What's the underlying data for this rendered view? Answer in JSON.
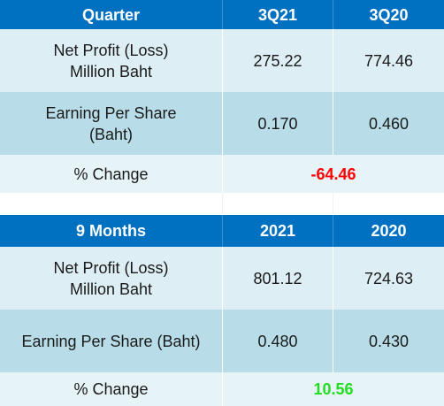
{
  "quarter": {
    "headers": [
      "Quarter",
      "3Q21",
      "3Q20"
    ],
    "rows": [
      {
        "label_line1": "Net Profit (Loss)",
        "label_line2": "Million Baht",
        "v1": "275.22",
        "v2": "774.46"
      },
      {
        "label_line1": "Earning Per Share",
        "label_line2": "(Baht)",
        "v1": "0.170",
        "v2": "0.460"
      }
    ],
    "change": {
      "label": "% Change",
      "value": "-64.46",
      "color": "#ff0000"
    }
  },
  "nine_months": {
    "headers": [
      "9 Months",
      "2021",
      "2020"
    ],
    "rows": [
      {
        "label_line1": "Net Profit (Loss)",
        "label_line2": "Million Baht",
        "v1": "801.12",
        "v2": "724.63"
      },
      {
        "label_line1": "Earning Per Share (Baht)",
        "v1": "0.480",
        "v2": "0.430"
      }
    ],
    "change": {
      "label": "% Change",
      "value": "10.56",
      "color": "#22dd22"
    }
  },
  "colors": {
    "header": "#0070c0",
    "row_light": "#ddeef4",
    "row_mid": "#b8dde8"
  }
}
